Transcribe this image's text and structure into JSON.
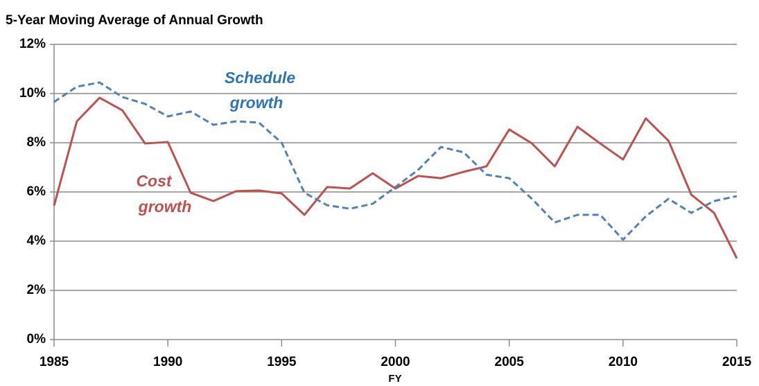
{
  "chart_data": {
    "type": "line",
    "title": "5-Year Moving Average of Annual Growth",
    "x_label": "FY",
    "x": [
      1985,
      1986,
      1987,
      1988,
      1989,
      1990,
      1991,
      1992,
      1993,
      1994,
      1995,
      1996,
      1997,
      1998,
      1999,
      2000,
      2001,
      2002,
      2003,
      2004,
      2005,
      2006,
      2007,
      2008,
      2009,
      2010,
      2011,
      2012,
      2013,
      2014,
      2015
    ],
    "series": [
      {
        "color": "#c0504d",
        "dashed": false,
        "values": [
          5.44,
          8.87,
          9.83,
          9.32,
          7.97,
          8.03,
          5.97,
          5.63,
          6.03,
          6.06,
          5.94,
          5.07,
          6.2,
          6.14,
          6.76,
          6.14,
          6.65,
          6.56,
          6.82,
          7.04,
          8.54,
          7.97,
          7.04,
          8.65,
          7.97,
          7.32,
          8.99,
          8.08,
          5.89,
          5.15,
          3.3
        ]
      },
      {
        "color": "#4f81bd",
        "dashed": true,
        "values": [
          9.66,
          10.28,
          10.45,
          9.86,
          9.58,
          9.07,
          9.27,
          8.73,
          8.87,
          8.82,
          8.0,
          5.97,
          5.46,
          5.32,
          5.52,
          6.2,
          6.9,
          7.83,
          7.61,
          6.7,
          6.56,
          5.72,
          4.76,
          5.07,
          5.07,
          4.06,
          5.01,
          5.72,
          5.15,
          5.63,
          5.83
        ]
      }
    ],
    "annotations": [
      {
        "lines": [
          "Cost",
          "growth"
        ],
        "color": "#c0504d"
      },
      {
        "lines": [
          "Schedule",
          "growth"
        ],
        "color": "#2e75b6"
      }
    ],
    "xlim": [
      1985,
      2015
    ],
    "xticks": [
      1985,
      1990,
      1995,
      2000,
      2005,
      2010,
      2015
    ],
    "ylim": [
      0,
      12
    ],
    "yticks": [
      {
        "value": 0,
        "label": "0%"
      },
      {
        "value": 2,
        "label": "2%"
      },
      {
        "value": 4,
        "label": "4%"
      },
      {
        "value": 6,
        "label": "6%"
      },
      {
        "value": 8,
        "label": "8%"
      },
      {
        "value": 10,
        "label": "10%"
      },
      {
        "value": 12,
        "label": "12%"
      }
    ],
    "grid": true
  }
}
